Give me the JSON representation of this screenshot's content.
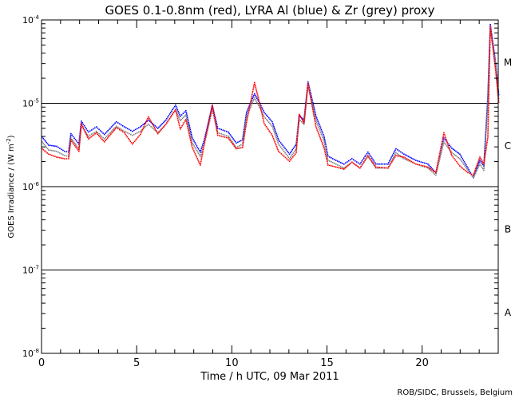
{
  "chart_data": {
    "type": "scatter",
    "title": "GOES 0.1-0.8nm (red), LYRA Al (blue) & Zr (grey) proxy",
    "xlabel": "Time / h UTC, 09 Mar 2011",
    "ylabel": "GOES Irradiance / (W m",
    "ylabel_sup": "-2",
    "ylabel_end": ")",
    "xlim": [
      0,
      24
    ],
    "ylim": [
      1e-08,
      0.0001
    ],
    "yscale": "log",
    "x_ticks": [
      "0",
      "5",
      "10",
      "15",
      "20"
    ],
    "x_tick_values": [
      0,
      5,
      10,
      15,
      20
    ],
    "y_ticks": [
      {
        "base": "10",
        "exp": "-8"
      },
      {
        "base": "10",
        "exp": "-7"
      },
      {
        "base": "10",
        "exp": "-6"
      },
      {
        "base": "10",
        "exp": "-5"
      },
      {
        "base": "10",
        "exp": "-4"
      }
    ],
    "y_tick_values": [
      1e-08,
      1e-07,
      1e-06,
      1e-05,
      0.0001
    ],
    "reference_lines": [
      1e-07,
      1e-06,
      1e-05
    ],
    "flare_classes": [
      {
        "label": "A",
        "value": 3.16e-08
      },
      {
        "label": "B",
        "value": 3.16e-07
      },
      {
        "label": "C",
        "value": 3.16e-06
      },
      {
        "label": "M",
        "value": 3.16e-05
      }
    ],
    "x": [
      0,
      0.34,
      0.76,
      1.18,
      1.39,
      1.51,
      1.93,
      2.06,
      2.43,
      2.85,
      3.27,
      3.9,
      4.32,
      4.74,
      5.16,
      5.58,
      6.08,
      6.5,
      7.01,
      7.26,
      7.55,
      7.89,
      8.31,
      8.52,
      8.94,
      9.23,
      9.78,
      10.2,
      10.53,
      10.74,
      11.16,
      11.46,
      11.67,
      12.09,
      12.42,
      13.0,
      13.35,
      13.51,
      13.76,
      13.97,
      14.39,
      14.81,
      15.02,
      15.44,
      15.86,
      16.28,
      16.7,
      17.12,
      17.54,
      18.17,
      18.59,
      19.01,
      19.64,
      20.27,
      20.69,
      21.11,
      21.53,
      21.95,
      22.37,
      22.66,
      23.0,
      23.21,
      23.42,
      23.55,
      23.84,
      24.0
    ],
    "series": [
      {
        "name": "LYRA Al proxy",
        "color": "#0000ff",
        "values": [
          4e-06,
          3.2e-06,
          3.1e-06,
          2.7e-06,
          2.64e-06,
          4.4e-06,
          3.3e-06,
          6.2e-06,
          4.6e-06,
          5.3e-06,
          4.3e-06,
          6.1e-06,
          5.3e-06,
          4.7e-06,
          5.3e-06,
          6.4e-06,
          5.1e-06,
          6.4e-06,
          9.7e-06,
          7.1e-06,
          8.3e-06,
          3.9e-06,
          2.64e-06,
          3.7e-06,
          9.5e-06,
          5.1e-06,
          4.6e-06,
          3.4e-06,
          3.7e-06,
          7.9e-06,
          1.32e-05,
          9.9e-06,
          7.9e-06,
          6.1e-06,
          3.7e-06,
          2.5e-06,
          3.3e-06,
          7.3e-06,
          6.4e-06,
          1.83e-05,
          7.1e-06,
          4.1e-06,
          2.36e-06,
          2.1e-06,
          1.9e-06,
          2.2e-06,
          1.9e-06,
          2.64e-06,
          1.9e-06,
          1.9e-06,
          2.9e-06,
          2.5e-06,
          2.1e-06,
          1.9e-06,
          1.49e-06,
          3.9e-06,
          2.94e-06,
          2.5e-06,
          1.7e-06,
          1.3e-06,
          2.1e-06,
          1.8e-06,
          1.23e-05,
          8.96e-05,
          2.98e-05,
          1.23e-05
        ]
      },
      {
        "name": "LYRA Zr proxy",
        "color": "#808080",
        "values": [
          3.5e-06,
          2.8e-06,
          2.7e-06,
          2.4e-06,
          2.35e-06,
          3.9e-06,
          2.9e-06,
          5.5e-06,
          4.1e-06,
          4.7e-06,
          3.8e-06,
          5.4e-06,
          4.7e-06,
          4.2e-06,
          4.7e-06,
          5.7e-06,
          4.5e-06,
          5.7e-06,
          8.6e-06,
          6.3e-06,
          7.4e-06,
          3.4e-06,
          2.35e-06,
          3.3e-06,
          8.5e-06,
          4.5e-06,
          4.1e-06,
          3e-06,
          3.3e-06,
          7e-06,
          1.18e-05,
          8.8e-06,
          7e-06,
          5.4e-06,
          3.3e-06,
          2.2e-06,
          2.9e-06,
          6.5e-06,
          5.7e-06,
          1.65e-05,
          6.3e-06,
          3.6e-06,
          2.1e-06,
          1.9e-06,
          1.7e-06,
          2e-06,
          1.7e-06,
          2.35e-06,
          1.7e-06,
          1.7e-06,
          2.6e-06,
          2.2e-06,
          1.9e-06,
          1.7e-06,
          1.4e-06,
          3.5e-06,
          2.6e-06,
          2.2e-06,
          1.6e-06,
          1.3e-06,
          1.9e-06,
          1.6e-06,
          1.1e-05,
          8e-05,
          2.7e-05,
          1.1e-05
        ]
      },
      {
        "name": "GOES 0.1-0.8nm",
        "color": "#ff0000",
        "values": [
          2.9e-06,
          2.5e-06,
          2.3e-06,
          2.2e-06,
          2.2e-06,
          3.7e-06,
          2.7e-06,
          5.8e-06,
          3.8e-06,
          4.5e-06,
          3.5e-06,
          5.2e-06,
          4.5e-06,
          3.3e-06,
          4.3e-06,
          7e-06,
          4.4e-06,
          5.7e-06,
          8.5e-06,
          5e-06,
          6.5e-06,
          3e-06,
          1.85e-06,
          3.3e-06,
          9.7e-06,
          4.2e-06,
          3.9e-06,
          2.9e-06,
          3e-06,
          6e-06,
          1.8e-05,
          9.5e-06,
          5.8e-06,
          4.2e-06,
          2.7e-06,
          2.05e-06,
          2.6e-06,
          7.5e-06,
          5.9e-06,
          1.75e-05,
          5.3e-06,
          3e-06,
          1.85e-06,
          1.75e-06,
          1.65e-06,
          2e-06,
          1.7e-06,
          2.4e-06,
          1.75e-06,
          1.7e-06,
          2.4e-06,
          2.3e-06,
          1.9e-06,
          1.75e-06,
          1.5e-06,
          4.5e-06,
          2.4e-06,
          1.8e-06,
          1.5e-06,
          1.4e-06,
          2.3e-06,
          1.9e-06,
          4e-06,
          8.5e-05,
          2.4e-05,
          1e-05
        ]
      }
    ],
    "grid": false,
    "credit": "ROB/SIDC, Brussels, Belgium"
  }
}
